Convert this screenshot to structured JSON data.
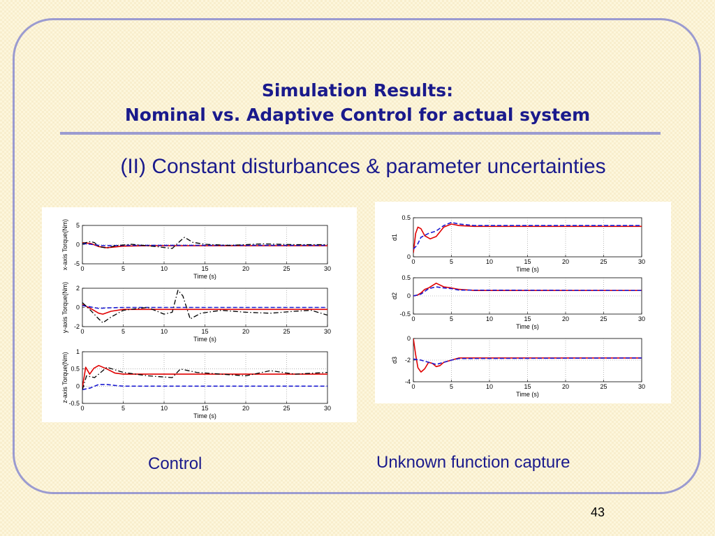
{
  "slide": {
    "title_line1": "Simulation Results:",
    "title_line2": "Nominal vs. Adaptive Control for actual system",
    "subtitle": "(II) Constant disturbances & parameter uncertainties",
    "caption_left": "Control",
    "caption_right": "Unknown function capture",
    "page_number": "43"
  },
  "colors": {
    "title": "#1a1a8c",
    "frame": "#9b9bd0",
    "adaptive": "#e00000",
    "nominal": "#1a1ad0",
    "other": "#000000"
  },
  "chart_data": [
    {
      "type": "line",
      "panel": "left",
      "xlabel": "Time (s)",
      "ylabel": "x-axis Torque(Nm)",
      "xlim": [
        0,
        30
      ],
      "ylim": [
        -5,
        5
      ],
      "xticks": [
        0,
        5,
        10,
        15,
        20,
        25,
        30
      ],
      "yticks": [
        -5,
        0,
        5
      ],
      "grid": true,
      "series": [
        {
          "style": "red-solid",
          "x": [
            0,
            1,
            2,
            3,
            5,
            8,
            30
          ],
          "y": [
            0.5,
            0.3,
            -0.5,
            -0.8,
            -0.4,
            -0.3,
            -0.3
          ]
        },
        {
          "style": "blue-dashed",
          "x": [
            0,
            1,
            2,
            3,
            5,
            30
          ],
          "y": [
            0.3,
            0.1,
            -0.2,
            -0.3,
            -0.2,
            -0.2
          ]
        },
        {
          "style": "black-dashdot",
          "x": [
            0,
            1,
            1.5,
            2,
            3,
            4,
            6,
            9,
            11,
            12,
            12.5,
            13.5,
            15,
            18,
            22,
            26,
            30
          ],
          "y": [
            0.3,
            0.8,
            0.5,
            -0.5,
            -0.9,
            -0.3,
            0.1,
            -0.5,
            -1.0,
            1.0,
            1.9,
            0.6,
            0.1,
            -0.2,
            0.2,
            0.0,
            0.0
          ]
        }
      ]
    },
    {
      "type": "line",
      "panel": "left",
      "xlabel": "Time (s)",
      "ylabel": "y-axis Torque(Nm)",
      "xlim": [
        0,
        30
      ],
      "ylim": [
        -2,
        2
      ],
      "xticks": [
        0,
        5,
        10,
        15,
        20,
        25,
        30
      ],
      "yticks": [
        -2,
        0,
        2
      ],
      "grid": true,
      "series": [
        {
          "style": "red-solid",
          "x": [
            0,
            1,
            2,
            2.5,
            3.5,
            5,
            8,
            30
          ],
          "y": [
            0.3,
            -0.1,
            -0.6,
            -0.7,
            -0.4,
            -0.2,
            -0.2,
            -0.2
          ]
        },
        {
          "style": "blue-dashed",
          "x": [
            0,
            1,
            2,
            3,
            5,
            30
          ],
          "y": [
            0.2,
            0.05,
            -0.1,
            -0.05,
            0.0,
            0.0
          ]
        },
        {
          "style": "black-dashdot",
          "x": [
            0,
            1,
            2,
            2.5,
            3.5,
            5,
            8,
            10,
            11,
            11.7,
            12.3,
            13.2,
            14.5,
            17,
            20,
            23,
            26,
            28,
            30
          ],
          "y": [
            0.5,
            -0.3,
            -1.2,
            -1.6,
            -1.0,
            -0.3,
            0.0,
            -0.7,
            -0.5,
            1.8,
            1.2,
            -1.2,
            -0.6,
            -0.3,
            -0.5,
            -0.6,
            -0.4,
            -0.3,
            -0.8
          ]
        }
      ]
    },
    {
      "type": "line",
      "panel": "left",
      "xlabel": "Time (s)",
      "ylabel": "z-axis Torque(Nm)",
      "xlim": [
        0,
        30
      ],
      "ylim": [
        -0.5,
        1
      ],
      "xticks": [
        0,
        5,
        10,
        15,
        20,
        25,
        30
      ],
      "yticks": [
        -0.5,
        0,
        0.5,
        1
      ],
      "grid": true,
      "series": [
        {
          "style": "red-solid",
          "x": [
            0,
            0.4,
            0.9,
            1.4,
            2,
            3,
            4,
            5,
            30
          ],
          "y": [
            -0.05,
            0.55,
            0.35,
            0.52,
            0.6,
            0.5,
            0.38,
            0.35,
            0.35
          ]
        },
        {
          "style": "blue-dashed",
          "x": [
            0,
            1,
            2,
            3,
            4,
            5,
            30
          ],
          "y": [
            -0.1,
            -0.05,
            0.05,
            0.05,
            0.02,
            0.0,
            0.0
          ]
        },
        {
          "style": "black-dashdot",
          "x": [
            0,
            0.5,
            1.5,
            3,
            5,
            8,
            11,
            12,
            14,
            17,
            20,
            23,
            26,
            30
          ],
          "y": [
            -0.1,
            0.3,
            0.25,
            0.55,
            0.4,
            0.3,
            0.25,
            0.5,
            0.4,
            0.35,
            0.3,
            0.45,
            0.35,
            0.4
          ]
        }
      ]
    },
    {
      "type": "line",
      "panel": "right",
      "xlabel": "Time (s)",
      "ylabel": "d1",
      "xlim": [
        0,
        30
      ],
      "ylim": [
        0,
        0.5
      ],
      "xticks": [
        0,
        5,
        10,
        15,
        20,
        25,
        30
      ],
      "yticks": [
        0,
        0.5
      ],
      "grid": true,
      "series": [
        {
          "style": "red-solid",
          "x": [
            0,
            0.3,
            0.6,
            1,
            1.5,
            2.2,
            3,
            4,
            5,
            6,
            8,
            30
          ],
          "y": [
            0.05,
            0.3,
            0.38,
            0.36,
            0.27,
            0.23,
            0.26,
            0.38,
            0.42,
            0.4,
            0.39,
            0.39
          ]
        },
        {
          "style": "blue-dashed",
          "x": [
            0,
            0.5,
            1,
            2,
            3,
            4,
            5,
            6,
            8,
            30
          ],
          "y": [
            0.1,
            0.15,
            0.25,
            0.3,
            0.33,
            0.4,
            0.44,
            0.42,
            0.4,
            0.4
          ]
        }
      ]
    },
    {
      "type": "line",
      "panel": "right",
      "xlabel": "Time (s)",
      "ylabel": "d2",
      "xlim": [
        0,
        30
      ],
      "ylim": [
        -0.5,
        0.5
      ],
      "xticks": [
        0,
        5,
        10,
        15,
        20,
        25,
        30
      ],
      "yticks": [
        -0.5,
        0,
        0.5
      ],
      "grid": true,
      "series": [
        {
          "style": "red-solid",
          "x": [
            0,
            0.5,
            1,
            1.5,
            2,
            3,
            4,
            5,
            6,
            8,
            30
          ],
          "y": [
            0.0,
            0.02,
            0.08,
            0.18,
            0.22,
            0.35,
            0.25,
            0.22,
            0.18,
            0.15,
            0.15
          ]
        },
        {
          "style": "blue-dashed",
          "x": [
            0,
            1,
            2,
            3,
            4,
            5,
            6,
            30
          ],
          "y": [
            0.0,
            0.05,
            0.2,
            0.25,
            0.22,
            0.2,
            0.16,
            0.15
          ]
        }
      ]
    },
    {
      "type": "line",
      "panel": "right",
      "xlabel": "Time (s)",
      "ylabel": "d3",
      "xlim": [
        0,
        30
      ],
      "ylim": [
        -4,
        0
      ],
      "xticks": [
        0,
        5,
        10,
        15,
        20,
        25,
        30
      ],
      "yticks": [
        -4,
        -2,
        0
      ],
      "grid": true,
      "series": [
        {
          "style": "red-solid",
          "x": [
            0,
            0.3,
            0.6,
            1,
            1.5,
            2,
            2.5,
            3,
            3.5,
            4,
            5,
            6,
            8,
            30
          ],
          "y": [
            0,
            -1.5,
            -2.7,
            -3.1,
            -2.8,
            -2.2,
            -2.3,
            -2.6,
            -2.5,
            -2.2,
            -2.0,
            -1.8,
            -1.8,
            -1.8
          ]
        },
        {
          "style": "blue-dashed",
          "x": [
            0,
            1,
            2,
            3,
            4,
            5,
            6,
            30
          ],
          "y": [
            -1.9,
            -2.0,
            -2.2,
            -2.4,
            -2.2,
            -2.0,
            -1.85,
            -1.8
          ]
        }
      ]
    }
  ]
}
